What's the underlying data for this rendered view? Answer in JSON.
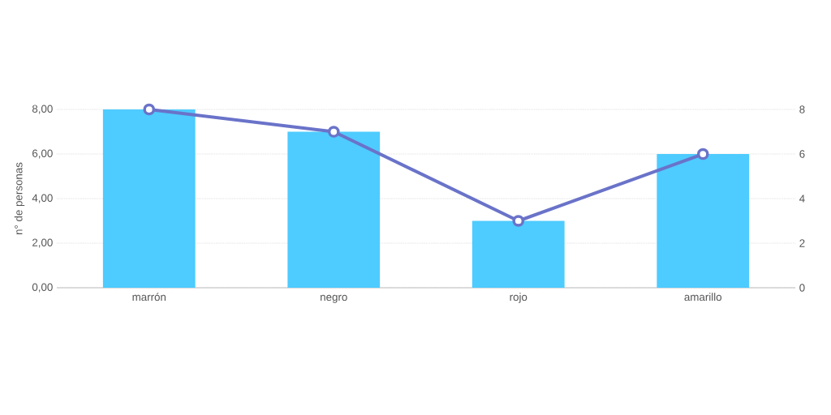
{
  "chart_data": {
    "type": "bar",
    "categories": [
      "marrón",
      "negro",
      "rojo",
      "amarillo"
    ],
    "ylabel": "n° de personas",
    "series": [
      {
        "color": "#4ecbff",
        "values": [
          8,
          7,
          3,
          6
        ]
      },
      {
        "type": "line",
        "axis": "y2",
        "color": "#6a73c9",
        "marker": "circle",
        "values": [
          8,
          7,
          3,
          6
        ]
      }
    ],
    "ylim": [
      0,
      8
    ],
    "yticks": [
      {
        "value": 0,
        "label": "0,00"
      },
      {
        "value": 2,
        "label": "2,00"
      },
      {
        "value": 4,
        "label": "4,00"
      },
      {
        "value": 6,
        "label": "6,00"
      },
      {
        "value": 8,
        "label": "8,00"
      }
    ],
    "y2lim": [
      0,
      8
    ],
    "y2ticks": [
      0,
      2,
      4,
      6,
      8
    ],
    "grid": "y"
  }
}
